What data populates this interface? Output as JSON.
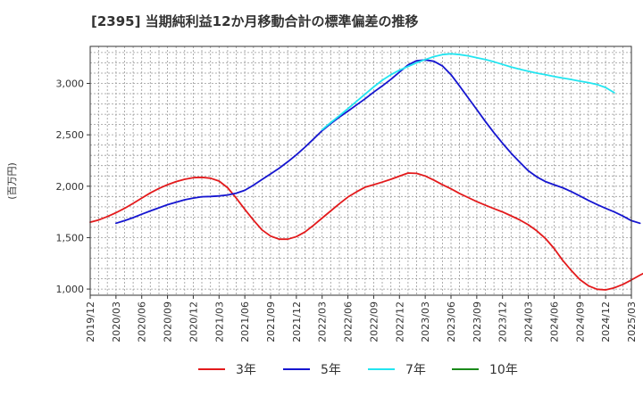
{
  "chart_data": {
    "type": "line",
    "title": "[2395]  当期純利益12か月移動合計の標準偏差の推移",
    "ylabel": "(百万円)",
    "xlabel": "",
    "ylim": [
      940,
      3360
    ],
    "yticks": [
      1000,
      1500,
      2000,
      2500,
      3000
    ],
    "ytick_labels": [
      "1,000",
      "1,500",
      "2,000",
      "2,500",
      "3,000"
    ],
    "x_categories": [
      "2019/12",
      "2020/03",
      "2020/06",
      "2020/09",
      "2020/12",
      "2021/03",
      "2021/06",
      "2021/09",
      "2021/12",
      "2022/03",
      "2022/06",
      "2022/09",
      "2022/12",
      "2023/03",
      "2023/06",
      "2023/09",
      "2023/12",
      "2024/03",
      "2024/06",
      "2024/09",
      "2024/12",
      "2025/03"
    ],
    "grid": true,
    "legend_position": "bottom",
    "series": [
      {
        "name": "3年",
        "color": "#e31a1c",
        "start": 0,
        "values": [
          1650,
          1672,
          1705,
          1742,
          1785,
          1833,
          1885,
          1935,
          1978,
          2015,
          2045,
          2068,
          2083,
          2087,
          2078,
          2050,
          1985,
          1885,
          1775,
          1670,
          1575,
          1515,
          1485,
          1485,
          1510,
          1555,
          1620,
          1690,
          1760,
          1830,
          1895,
          1945,
          1990,
          2015,
          2040,
          2068,
          2098,
          2128,
          2125,
          2100,
          2060,
          2015,
          1975,
          1930,
          1890,
          1850,
          1815,
          1782,
          1750,
          1712,
          1672,
          1625,
          1565,
          1492,
          1395,
          1280,
          1180,
          1092,
          1032,
          998,
          992,
          1012,
          1045,
          1088,
          1135,
          1178,
          1195,
          1192,
          1178
        ]
      },
      {
        "name": "5年",
        "color": "#1515d0",
        "start": 3,
        "values": [
          1640,
          1665,
          1695,
          1728,
          1760,
          1790,
          1820,
          1845,
          1868,
          1885,
          1898,
          1900,
          1905,
          1915,
          1932,
          1960,
          2010,
          2065,
          2120,
          2175,
          2238,
          2305,
          2380,
          2460,
          2540,
          2608,
          2672,
          2730,
          2790,
          2850,
          2915,
          2975,
          3040,
          3110,
          3180,
          3220,
          3228,
          3215,
          3170,
          3085,
          2975,
          2860,
          2745,
          2630,
          2520,
          2418,
          2322,
          2233,
          2150,
          2090,
          2045,
          2015,
          1985,
          1948,
          1905,
          1862,
          1822,
          1785,
          1750,
          1710,
          1665,
          1640
        ]
      },
      {
        "name": "7年",
        "color": "#22e5f0",
        "start": 27,
        "values": [
          2550,
          2618,
          2685,
          2755,
          2825,
          2895,
          2965,
          3030,
          3085,
          3128,
          3165,
          3200,
          3232,
          3260,
          3280,
          3288,
          3280,
          3268,
          3250,
          3232,
          3210,
          3185,
          3160,
          3138,
          3118,
          3100,
          3085,
          3068,
          3052,
          3038,
          3022,
          3008,
          2990,
          2960,
          2910
        ]
      },
      {
        "name": "10年",
        "color": "#1a8a1a",
        "start": 0,
        "values": []
      }
    ]
  }
}
